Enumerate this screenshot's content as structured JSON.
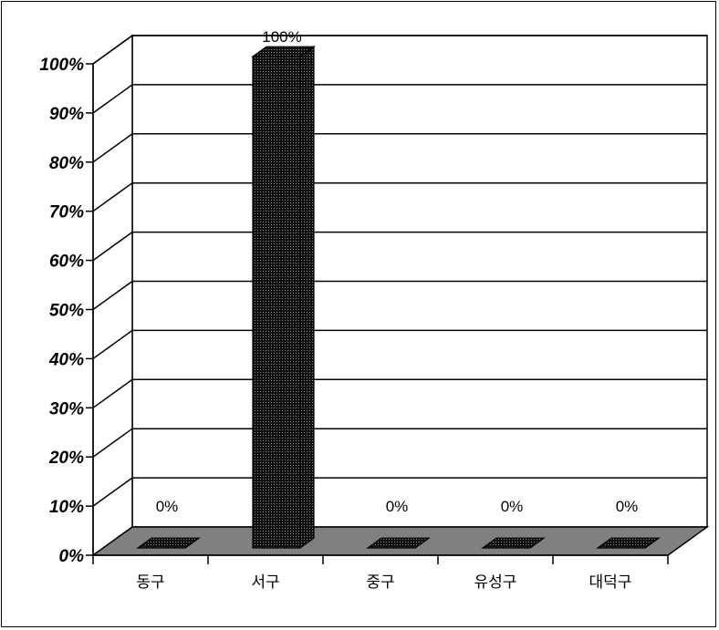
{
  "chart_data": {
    "type": "bar",
    "categories": [
      "동구",
      "서구",
      "중구",
      "유성구",
      "대덕구"
    ],
    "values": [
      0,
      100,
      0,
      0,
      0
    ],
    "data_labels": [
      "0%",
      "100%",
      "0%",
      "0%",
      "0%"
    ],
    "ylim": [
      0,
      100
    ],
    "yticks": [
      0,
      10,
      20,
      30,
      40,
      50,
      60,
      70,
      80,
      90,
      100
    ],
    "ytick_labels": [
      "0%",
      "10%",
      "20%",
      "30%",
      "40%",
      "50%",
      "60%",
      "70%",
      "80%",
      "90%",
      "100%"
    ],
    "grid": true,
    "three_d": true,
    "colors": {
      "bar": "#1a1a1a",
      "floor": "#808080",
      "grid": "#000000",
      "background": "#ffffff"
    }
  }
}
